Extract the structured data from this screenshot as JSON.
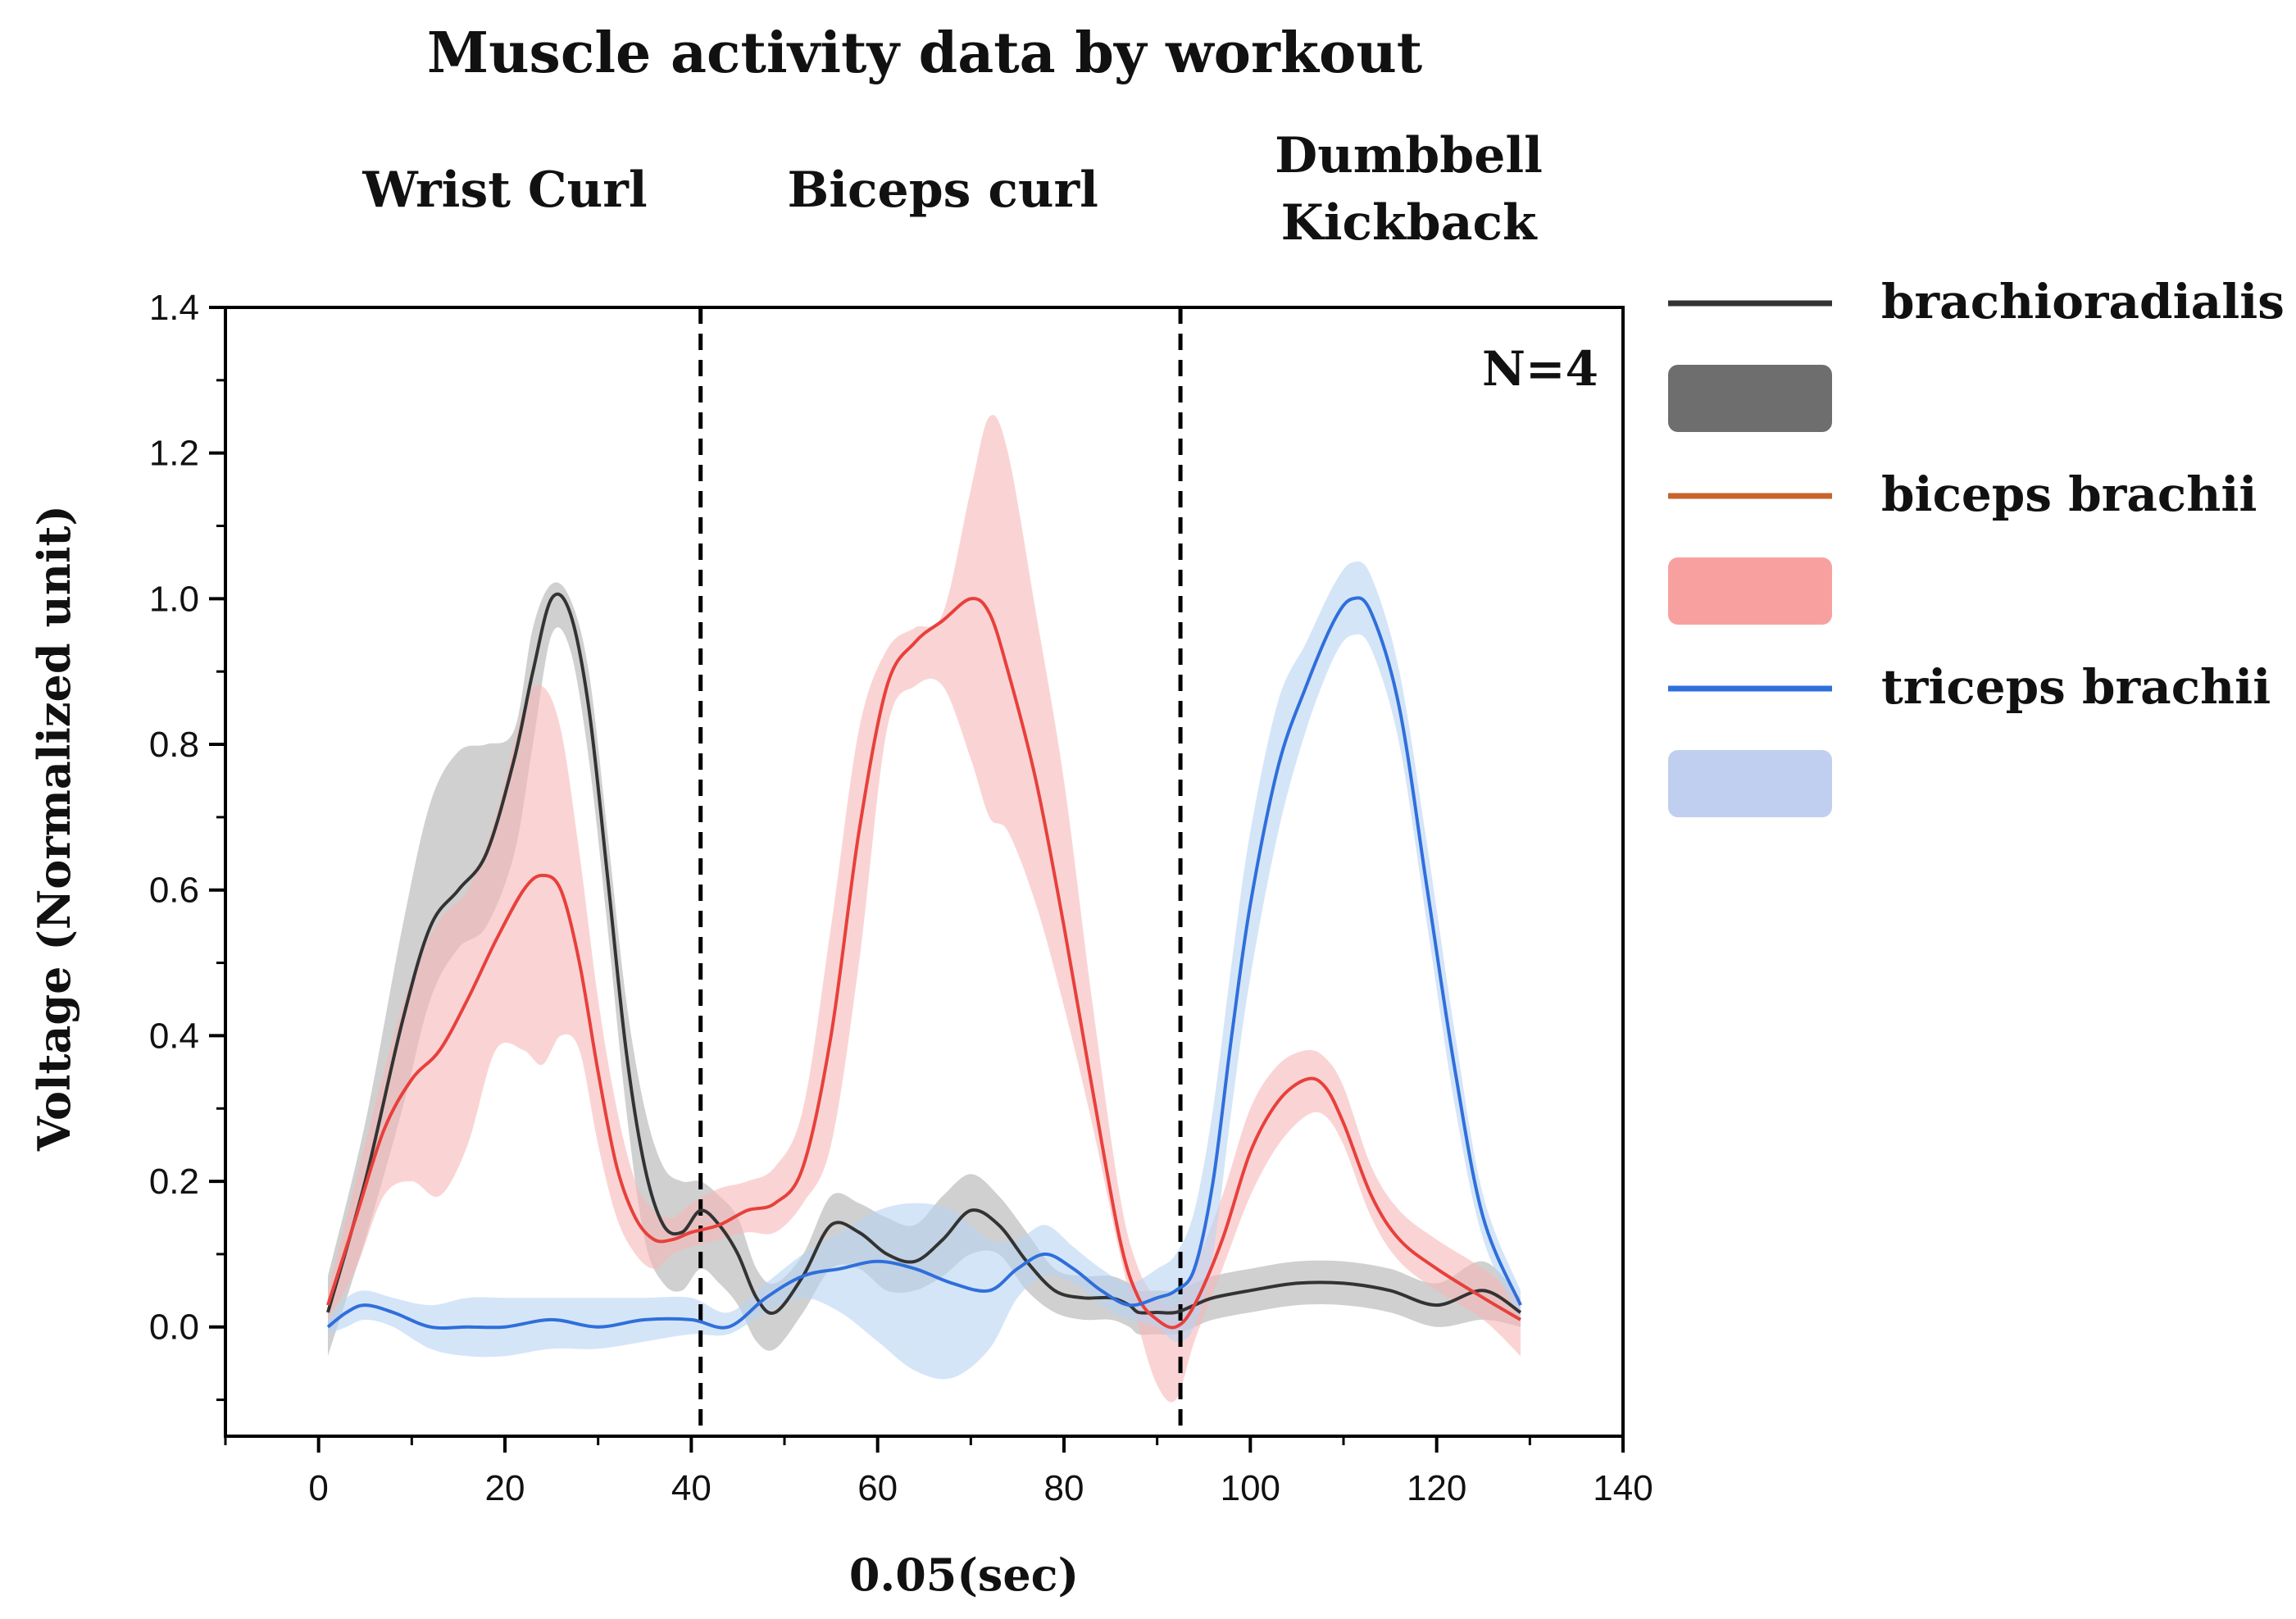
{
  "chart_data": {
    "type": "line",
    "title": "Muscle activity data by workout",
    "xlabel": "0.05(sec)",
    "ylabel": "Voltage (Normalized unit)",
    "xlim": [
      -10,
      140
    ],
    "ylim": [
      -0.15,
      1.4
    ],
    "x_ticks": [
      0,
      20,
      40,
      60,
      80,
      100,
      120,
      140
    ],
    "y_ticks": [
      0.0,
      0.2,
      0.4,
      0.6,
      0.8,
      1.0,
      1.2,
      1.4
    ],
    "y_tick_labels": [
      "0.0",
      "0.2",
      "0.4",
      "0.6",
      "0.8",
      "1.0",
      "1.2",
      "1.4"
    ],
    "sections": [
      {
        "label_lines": [
          "Wrist Curl"
        ],
        "x_center": 20
      },
      {
        "label_lines": [
          "Biceps curl"
        ],
        "x_center": 67
      },
      {
        "label_lines": [
          "Dumbbell",
          "Kickback"
        ],
        "x_center": 117
      }
    ],
    "dividers_x": [
      41,
      92.5
    ],
    "annotation": "N=4",
    "series": [
      {
        "name": "brachioradialis",
        "color": "#333333",
        "band_color": "#b0b0b0",
        "legend_band_color": "#6e6e6e",
        "x": [
          1,
          5,
          9,
          12,
          15,
          18,
          21,
          23,
          25,
          27,
          29,
          31,
          33,
          35,
          37,
          39,
          41,
          43,
          45,
          47,
          49,
          52,
          55,
          58,
          61,
          64,
          67,
          70,
          73,
          76,
          79,
          82,
          85,
          87,
          88,
          90,
          92,
          94,
          96,
          100,
          105,
          110,
          115,
          120,
          125,
          129
        ],
        "mean": [
          0.02,
          0.2,
          0.42,
          0.55,
          0.6,
          0.65,
          0.78,
          0.9,
          1.0,
          0.98,
          0.85,
          0.62,
          0.38,
          0.22,
          0.14,
          0.13,
          0.16,
          0.14,
          0.1,
          0.04,
          0.02,
          0.07,
          0.14,
          0.13,
          0.1,
          0.09,
          0.12,
          0.16,
          0.14,
          0.09,
          0.05,
          0.04,
          0.04,
          0.03,
          0.02,
          0.02,
          0.02,
          0.03,
          0.04,
          0.05,
          0.06,
          0.06,
          0.05,
          0.03,
          0.05,
          0.02
        ],
        "lower": [
          -0.04,
          0.12,
          0.3,
          0.45,
          0.52,
          0.55,
          0.65,
          0.8,
          0.95,
          0.93,
          0.78,
          0.55,
          0.3,
          0.12,
          0.06,
          0.05,
          0.08,
          0.06,
          0.03,
          -0.02,
          -0.03,
          0.02,
          0.08,
          0.08,
          0.05,
          0.05,
          0.07,
          0.1,
          0.1,
          0.05,
          0.02,
          0.01,
          0.01,
          0.0,
          -0.01,
          -0.01,
          -0.01,
          0.0,
          0.01,
          0.02,
          0.03,
          0.03,
          0.02,
          0.0,
          0.01,
          0.0
        ],
        "upper": [
          0.07,
          0.28,
          0.55,
          0.72,
          0.79,
          0.8,
          0.82,
          0.96,
          1.02,
          1.0,
          0.9,
          0.68,
          0.45,
          0.3,
          0.22,
          0.2,
          0.2,
          0.18,
          0.15,
          0.08,
          0.06,
          0.1,
          0.18,
          0.17,
          0.15,
          0.14,
          0.18,
          0.21,
          0.18,
          0.13,
          0.08,
          0.07,
          0.07,
          0.06,
          0.05,
          0.05,
          0.05,
          0.06,
          0.07,
          0.08,
          0.09,
          0.09,
          0.08,
          0.06,
          0.09,
          0.04
        ]
      },
      {
        "name": "biceps brachii",
        "color": "#e8403c",
        "legend_color": "#c8632a",
        "band_color": "#f7b8b8",
        "legend_band_color": "#f8a0a0",
        "x": [
          1,
          4,
          7,
          10,
          13,
          16,
          19,
          22,
          24,
          26,
          28,
          30,
          32,
          34,
          36,
          38,
          40,
          43,
          46,
          49,
          52,
          55,
          58,
          61,
          64,
          67,
          70,
          72,
          74,
          77,
          80,
          83,
          86,
          88,
          90,
          92,
          94,
          97,
          100,
          103,
          106,
          108,
          110,
          113,
          116,
          120,
          125,
          129
        ],
        "mean": [
          0.03,
          0.15,
          0.27,
          0.34,
          0.38,
          0.45,
          0.53,
          0.6,
          0.62,
          0.6,
          0.5,
          0.35,
          0.22,
          0.15,
          0.12,
          0.12,
          0.13,
          0.14,
          0.16,
          0.17,
          0.22,
          0.4,
          0.68,
          0.88,
          0.94,
          0.97,
          1.0,
          0.98,
          0.9,
          0.75,
          0.55,
          0.33,
          0.12,
          0.04,
          0.01,
          0.0,
          0.03,
          0.12,
          0.24,
          0.31,
          0.34,
          0.33,
          0.28,
          0.18,
          0.12,
          0.08,
          0.04,
          0.01
        ],
        "lower": [
          0.01,
          0.08,
          0.18,
          0.2,
          0.18,
          0.25,
          0.38,
          0.38,
          0.36,
          0.4,
          0.38,
          0.25,
          0.15,
          0.1,
          0.08,
          0.1,
          0.11,
          0.12,
          0.13,
          0.13,
          0.17,
          0.25,
          0.5,
          0.82,
          0.88,
          0.88,
          0.78,
          0.7,
          0.68,
          0.58,
          0.44,
          0.28,
          0.1,
          0.0,
          -0.08,
          -0.1,
          -0.02,
          0.08,
          0.18,
          0.25,
          0.29,
          0.29,
          0.25,
          0.15,
          0.09,
          0.05,
          0.01,
          -0.04
        ],
        "upper": [
          0.05,
          0.2,
          0.35,
          0.48,
          0.56,
          0.6,
          0.7,
          0.85,
          0.88,
          0.82,
          0.65,
          0.45,
          0.3,
          0.2,
          0.16,
          0.15,
          0.17,
          0.19,
          0.2,
          0.22,
          0.3,
          0.55,
          0.82,
          0.93,
          0.96,
          0.98,
          1.15,
          1.25,
          1.2,
          0.98,
          0.75,
          0.45,
          0.18,
          0.08,
          0.04,
          0.03,
          0.08,
          0.18,
          0.3,
          0.36,
          0.38,
          0.37,
          0.33,
          0.22,
          0.16,
          0.12,
          0.08,
          0.04
        ]
      },
      {
        "name": "triceps brachii",
        "color": "#2f6fdb",
        "band_color": "#b9d3f3",
        "legend_band_color": "#c0cff0",
        "x": [
          1,
          3,
          5,
          8,
          12,
          16,
          20,
          25,
          30,
          35,
          40,
          44,
          48,
          52,
          56,
          60,
          64,
          68,
          72,
          75,
          78,
          81,
          84,
          87,
          90,
          92,
          94,
          96,
          98,
          100,
          103,
          106,
          109,
          111,
          113,
          116,
          119,
          122,
          125,
          129
        ],
        "mean": [
          0.0,
          0.02,
          0.03,
          0.02,
          0.0,
          0.0,
          0.0,
          0.01,
          0.0,
          0.01,
          0.01,
          0.0,
          0.04,
          0.07,
          0.08,
          0.09,
          0.08,
          0.06,
          0.05,
          0.08,
          0.1,
          0.08,
          0.05,
          0.03,
          0.04,
          0.05,
          0.08,
          0.2,
          0.4,
          0.58,
          0.77,
          0.88,
          0.97,
          1.0,
          0.98,
          0.85,
          0.6,
          0.35,
          0.15,
          0.03
        ],
        "lower": [
          -0.01,
          0.0,
          0.01,
          0.0,
          -0.03,
          -0.04,
          -0.04,
          -0.03,
          -0.03,
          -0.02,
          -0.01,
          -0.01,
          0.02,
          0.04,
          0.02,
          -0.02,
          -0.06,
          -0.07,
          -0.03,
          0.04,
          0.07,
          0.06,
          0.03,
          0.01,
          0.0,
          -0.02,
          0.0,
          0.1,
          0.3,
          0.48,
          0.68,
          0.82,
          0.92,
          0.95,
          0.93,
          0.8,
          0.55,
          0.3,
          0.12,
          0.01
        ],
        "upper": [
          0.01,
          0.04,
          0.05,
          0.04,
          0.03,
          0.04,
          0.04,
          0.04,
          0.04,
          0.04,
          0.04,
          0.02,
          0.06,
          0.1,
          0.13,
          0.16,
          0.17,
          0.16,
          0.12,
          0.12,
          0.14,
          0.11,
          0.08,
          0.06,
          0.08,
          0.1,
          0.16,
          0.3,
          0.5,
          0.68,
          0.86,
          0.94,
          1.02,
          1.05,
          1.03,
          0.9,
          0.66,
          0.4,
          0.18,
          0.05
        ]
      }
    ]
  }
}
